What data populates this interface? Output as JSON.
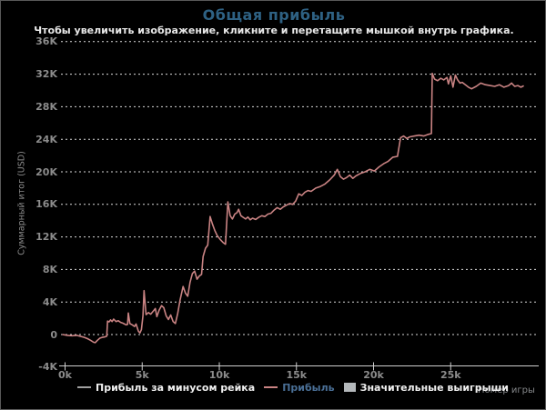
{
  "title": "Общая прибыль",
  "subtitle": "Чтобы увеличить изображение, кликните и перетащите мышкой внутрь графика.",
  "colors": {
    "background": "#000000",
    "frame_border": "#585858",
    "title_text": "#2e6183",
    "subtitle_text": "#e8e8e8",
    "axis_text": "#8c8c8c",
    "gridline": "#d9d9d9",
    "axis_line": "#cfcfcf",
    "profit_line": "#c98383",
    "rake_line_swatch": "#a0a0a0",
    "legend_text": "#f0f0f0",
    "legend_profit_text": "#4a6f96",
    "big_wins_box": "#b4b8bb"
  },
  "legend": {
    "items": [
      {
        "label": "Прибыль за минусом рейка",
        "swatch": "line",
        "swatch_color": "#a0a0a0",
        "label_color": "#f0f0f0"
      },
      {
        "label": "Прибыль",
        "swatch": "line",
        "swatch_color": "#c98383",
        "label_color": "#4a6f96"
      },
      {
        "label": "Значительные выигрыши",
        "swatch": "box",
        "swatch_color": "#b4b8bb",
        "label_color": "#f0f0f0"
      }
    ]
  },
  "chart_data": {
    "type": "line",
    "title": "Общая прибыль",
    "xlabel": "Номер игры",
    "ylabel": "Суммарный итог (USD)",
    "xlim": [
      0,
      30800
    ],
    "ylim": [
      -4000,
      36000
    ],
    "grid": "horizontal dotted",
    "legend_position": "bottom",
    "yticks": [
      {
        "value": 36000,
        "label": "36K"
      },
      {
        "value": 32000,
        "label": "32K"
      },
      {
        "value": 28000,
        "label": "28K"
      },
      {
        "value": 24000,
        "label": "24K"
      },
      {
        "value": 20000,
        "label": "20K"
      },
      {
        "value": 16000,
        "label": "16K"
      },
      {
        "value": 12000,
        "label": "12K"
      },
      {
        "value": 8000,
        "label": "8K"
      },
      {
        "value": 4000,
        "label": "4K"
      },
      {
        "value": 0,
        "label": "0"
      },
      {
        "value": -4000,
        "label": "-4K"
      }
    ],
    "xticks": [
      {
        "value": 0,
        "label": "0k"
      },
      {
        "value": 5000,
        "label": "5k"
      },
      {
        "value": 10000,
        "label": "10k"
      },
      {
        "value": 15000,
        "label": "15k"
      },
      {
        "value": 20000,
        "label": "20k"
      },
      {
        "value": 25000,
        "label": "25k"
      }
    ],
    "series": [
      {
        "name": "Прибыль",
        "color": "#c98383",
        "points": [
          [
            0,
            0
          ],
          [
            300,
            -100
          ],
          [
            600,
            -150
          ],
          [
            900,
            -100
          ],
          [
            1200,
            -250
          ],
          [
            1400,
            -350
          ],
          [
            1600,
            -500
          ],
          [
            1800,
            -700
          ],
          [
            2000,
            -950
          ],
          [
            2100,
            -1000
          ],
          [
            2250,
            -700
          ],
          [
            2400,
            -450
          ],
          [
            2550,
            -350
          ],
          [
            2700,
            -300
          ],
          [
            2850,
            -200
          ],
          [
            2900,
            1650
          ],
          [
            3000,
            1550
          ],
          [
            3100,
            1800
          ],
          [
            3200,
            1600
          ],
          [
            3300,
            1900
          ],
          [
            3450,
            1600
          ],
          [
            3600,
            1700
          ],
          [
            3750,
            1500
          ],
          [
            3900,
            1400
          ],
          [
            4100,
            1200
          ],
          [
            4200,
            1250
          ],
          [
            4250,
            2650
          ],
          [
            4350,
            1350
          ],
          [
            4500,
            1200
          ],
          [
            4650,
            1000
          ],
          [
            4750,
            1300
          ],
          [
            4900,
            400
          ],
          [
            5000,
            200
          ],
          [
            5100,
            600
          ],
          [
            5200,
            2300
          ],
          [
            5270,
            5400
          ],
          [
            5400,
            2450
          ],
          [
            5550,
            2700
          ],
          [
            5700,
            2500
          ],
          [
            5850,
            2850
          ],
          [
            6000,
            3200
          ],
          [
            6100,
            2200
          ],
          [
            6250,
            3000
          ],
          [
            6400,
            3550
          ],
          [
            6550,
            3300
          ],
          [
            6700,
            2300
          ],
          [
            6850,
            1850
          ],
          [
            7000,
            2400
          ],
          [
            7150,
            1600
          ],
          [
            7300,
            1350
          ],
          [
            7450,
            2600
          ],
          [
            7600,
            4200
          ],
          [
            7800,
            5900
          ],
          [
            7950,
            5100
          ],
          [
            8100,
            4700
          ],
          [
            8250,
            6400
          ],
          [
            8400,
            7500
          ],
          [
            8550,
            7800
          ],
          [
            8700,
            6800
          ],
          [
            8850,
            7200
          ],
          [
            9000,
            7400
          ],
          [
            9100,
            9600
          ],
          [
            9250,
            10600
          ],
          [
            9400,
            11000
          ],
          [
            9550,
            14500
          ],
          [
            9700,
            13600
          ],
          [
            9850,
            12800
          ],
          [
            10000,
            12200
          ],
          [
            10200,
            11700
          ],
          [
            10400,
            11300
          ],
          [
            10550,
            11100
          ],
          [
            10700,
            16300
          ],
          [
            10850,
            14600
          ],
          [
            11000,
            14200
          ],
          [
            11150,
            14800
          ],
          [
            11300,
            15000
          ],
          [
            11400,
            15400
          ],
          [
            11550,
            14600
          ],
          [
            11700,
            14400
          ],
          [
            11850,
            14200
          ],
          [
            12000,
            14450
          ],
          [
            12150,
            14100
          ],
          [
            12300,
            14300
          ],
          [
            12500,
            14150
          ],
          [
            12700,
            14400
          ],
          [
            12900,
            14600
          ],
          [
            13100,
            14500
          ],
          [
            13300,
            14800
          ],
          [
            13500,
            14900
          ],
          [
            13700,
            15300
          ],
          [
            13900,
            15600
          ],
          [
            14100,
            15400
          ],
          [
            14300,
            15700
          ],
          [
            14500,
            15900
          ],
          [
            14700,
            16100
          ],
          [
            14900,
            16000
          ],
          [
            15100,
            16400
          ],
          [
            15300,
            17300
          ],
          [
            15500,
            17100
          ],
          [
            15700,
            17500
          ],
          [
            15900,
            17700
          ],
          [
            16100,
            17600
          ],
          [
            16400,
            18000
          ],
          [
            16700,
            18200
          ],
          [
            17000,
            18500
          ],
          [
            17300,
            19000
          ],
          [
            17600,
            19600
          ],
          [
            17800,
            20300
          ],
          [
            18000,
            19400
          ],
          [
            18200,
            19100
          ],
          [
            18400,
            19300
          ],
          [
            18600,
            19600
          ],
          [
            18800,
            19200
          ],
          [
            19000,
            19500
          ],
          [
            19300,
            19800
          ],
          [
            19600,
            20000
          ],
          [
            19900,
            20300
          ],
          [
            20200,
            20100
          ],
          [
            20500,
            20600
          ],
          [
            20800,
            21000
          ],
          [
            21100,
            21300
          ],
          [
            21400,
            21800
          ],
          [
            21700,
            21900
          ],
          [
            21900,
            24200
          ],
          [
            22100,
            24400
          ],
          [
            22300,
            24100
          ],
          [
            22500,
            24300
          ],
          [
            22800,
            24400
          ],
          [
            23100,
            24500
          ],
          [
            23400,
            24400
          ],
          [
            23700,
            24600
          ],
          [
            23900,
            24700
          ],
          [
            23950,
            32100
          ],
          [
            24100,
            31400
          ],
          [
            24300,
            31200
          ],
          [
            24500,
            31500
          ],
          [
            24700,
            31300
          ],
          [
            24900,
            31600
          ],
          [
            25000,
            30800
          ],
          [
            25150,
            31800
          ],
          [
            25300,
            30400
          ],
          [
            25450,
            31900
          ],
          [
            25600,
            31300
          ],
          [
            25750,
            30900
          ],
          [
            25900,
            31000
          ],
          [
            26100,
            30700
          ],
          [
            26300,
            30400
          ],
          [
            26500,
            30200
          ],
          [
            26800,
            30500
          ],
          [
            27100,
            30900
          ],
          [
            27400,
            30700
          ],
          [
            27700,
            30600
          ],
          [
            28000,
            30500
          ],
          [
            28300,
            30700
          ],
          [
            28600,
            30400
          ],
          [
            28900,
            30600
          ],
          [
            29100,
            30900
          ],
          [
            29300,
            30500
          ],
          [
            29500,
            30600
          ],
          [
            29700,
            30400
          ],
          [
            29850,
            30550
          ]
        ]
      }
    ]
  }
}
